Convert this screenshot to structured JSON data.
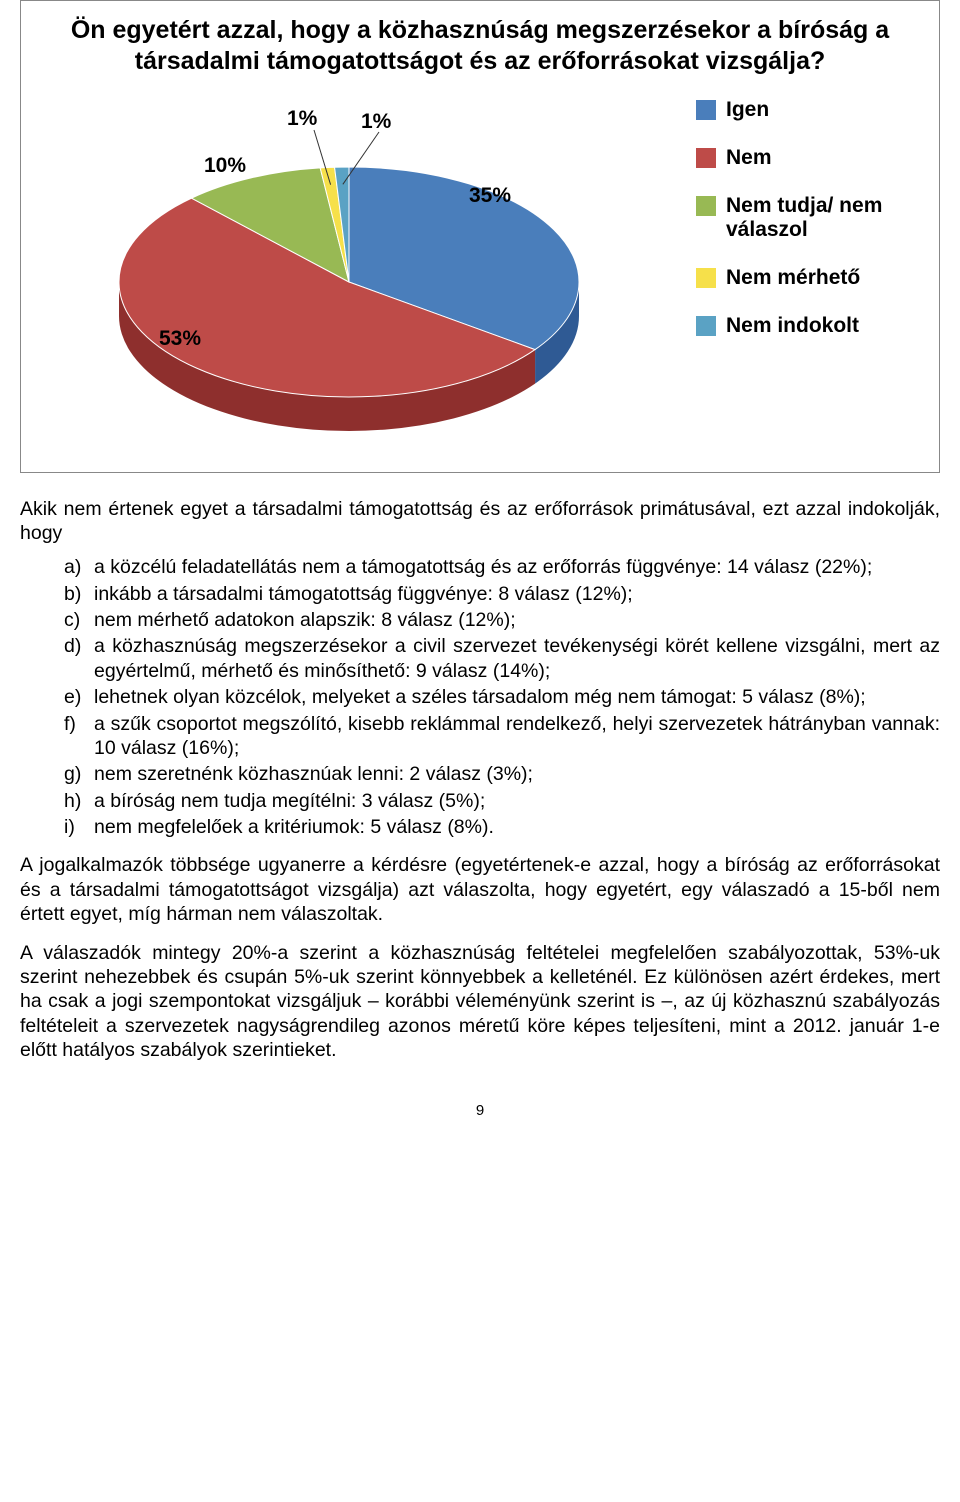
{
  "chart": {
    "type": "pie-3d",
    "title": "Ön egyetért azzal, hogy a közhasznúság megszerzésekor a bíróság a társadalmi támogatottságot és az erőforrásokat vizsgálja?",
    "slices": [
      {
        "label": "Igen",
        "pct": 35,
        "pct_text": "35%",
        "color": "#4a7ebb",
        "side": "#2f5a94"
      },
      {
        "label": "Nem",
        "pct": 53,
        "pct_text": "53%",
        "color": "#be4b48",
        "side": "#8e2f2d"
      },
      {
        "label": "Nem tudja/ nem válaszol",
        "pct": 10,
        "pct_text": "10%",
        "color": "#98b954",
        "side": "#6f8d36"
      },
      {
        "label": "Nem mérhető",
        "pct": 1,
        "pct_text": "1%",
        "color": "#f6e04a",
        "side": "#c5b22f"
      },
      {
        "label": "Nem indokolt",
        "pct": 1,
        "pct_text": "1%",
        "color": "#5aa2c4",
        "side": "#3d7b99"
      }
    ],
    "background_color": "#ffffff",
    "title_fontsize": 25,
    "label_fontsize": 21,
    "legend_fontsize": 21
  },
  "intro": "Akik nem értenek egyet a társadalmi támogatottság és az erőforrások primátusával, ezt azzal indokolják, hogy",
  "reasons": [
    {
      "m": "a)",
      "t": "a közcélú feladatellátás nem a támogatottság és az erőforrás függvénye: 14 válasz (22%);"
    },
    {
      "m": "b)",
      "t": "inkább a társadalmi támogatottság függvénye: 8 válasz (12%);"
    },
    {
      "m": "c)",
      "t": "nem mérhető adatokon alapszik: 8 válasz (12%);"
    },
    {
      "m": "d)",
      "t": "a közhasznúság megszerzésekor a civil szervezet tevékenységi körét kellene vizsgálni, mert az egyértelmű, mérhető és minősíthető: 9 válasz (14%);"
    },
    {
      "m": "e)",
      "t": "lehetnek olyan közcélok, melyeket a széles társadalom még nem támogat: 5 válasz (8%);"
    },
    {
      "m": "f)",
      "t": "a szűk csoportot megszólító, kisebb reklámmal rendelkező, helyi szervezetek hátrányban vannak: 10 válasz (16%);"
    },
    {
      "m": "g)",
      "t": "nem szeretnénk közhasznúak lenni: 2 válasz (3%);"
    },
    {
      "m": "h)",
      "t": "a bíróság nem tudja megítélni: 3 válasz (5%);"
    },
    {
      "m": "i)",
      "t": "nem megfelelőek a kritériumok: 5 válasz (8%)."
    }
  ],
  "para1": "A jogalkalmazók többsége ugyanerre a kérdésre (egyetértenek-e azzal, hogy a bíróság az erőforrásokat és a társadalmi támogatottságot vizsgálja) azt válaszolta, hogy egyetért, egy válaszadó a 15-ből nem értett egyet, míg hárman nem válaszoltak.",
  "para2": "A válaszadók mintegy 20%-a szerint a közhasznúság feltételei megfelelően szabályozottak, 53%-uk szerint nehezebbek és csupán 5%-uk szerint könnyebbek a kelleténél. Ez különösen azért érdekes, mert ha csak a jogi szempontokat vizsgáljuk – korábbi véleményünk szerint is –, az új közhasznú szabályozás feltételeit a szervezetek nagyságrendileg azonos méretű köre képes teljesíteni, mint a 2012. január 1-e előtt hatályos szabályok szerintieket.",
  "page_number": "9"
}
